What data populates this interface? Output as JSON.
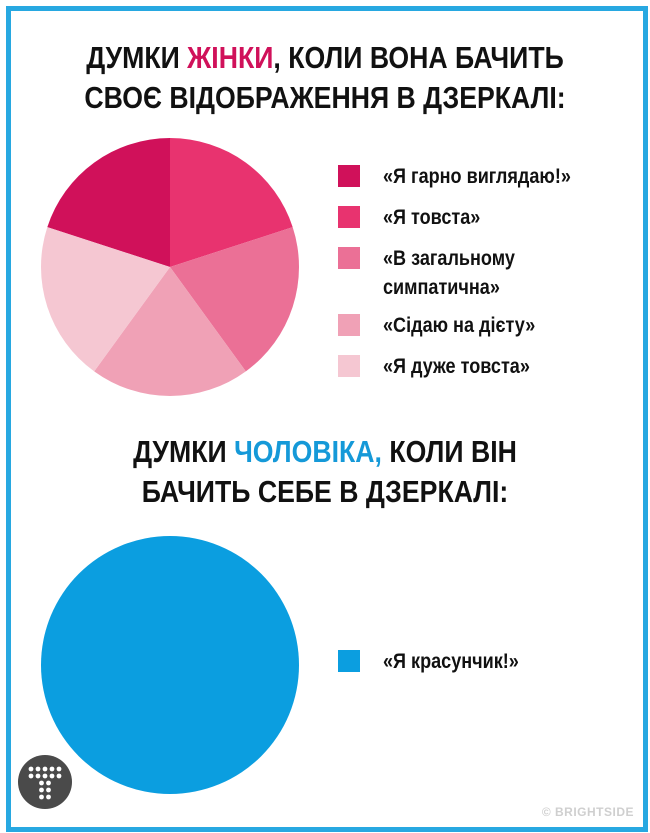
{
  "chart_data": [
    {
      "type": "pie",
      "title_parts": [
        "ДУМКИ ",
        "ЖІНКИ",
        ", КОЛИ ВОНА БАЧИТЬ",
        "СВОЄ ВІДОБРАЖЕННЯ В ДЗЕРКАЛІ:"
      ],
      "title_highlight_color": "#d0115a",
      "categories": [
        "«Я гарно виглядаю!»",
        "«Я товста»",
        "«В загальному симпатична»",
        "«Сідаю на дієту»",
        "«Я дуже товста»"
      ],
      "values": [
        20,
        20,
        20,
        20,
        20
      ],
      "colors": [
        "#d0115a",
        "#e8336f",
        "#eb7096",
        "#f0a1b6",
        "#f5c7d2"
      ],
      "legend_placement": "right"
    },
    {
      "type": "pie",
      "title_parts": [
        "ДУМКИ ",
        "ЧОЛОВІКА,",
        " КОЛИ ВІН",
        "БАЧИТЬ СЕБЕ В ДЗЕРКАЛІ:"
      ],
      "title_highlight_color": "#1599d8",
      "categories": [
        "«Я красунчик!»"
      ],
      "values": [
        100
      ],
      "colors": [
        "#0b9ee0"
      ],
      "legend_placement": "right"
    }
  ],
  "frame_color": "#27a8e1",
  "logo": {
    "icon": "t-dots-logo-icon"
  },
  "watermark": "© BRIGHTSIDE"
}
